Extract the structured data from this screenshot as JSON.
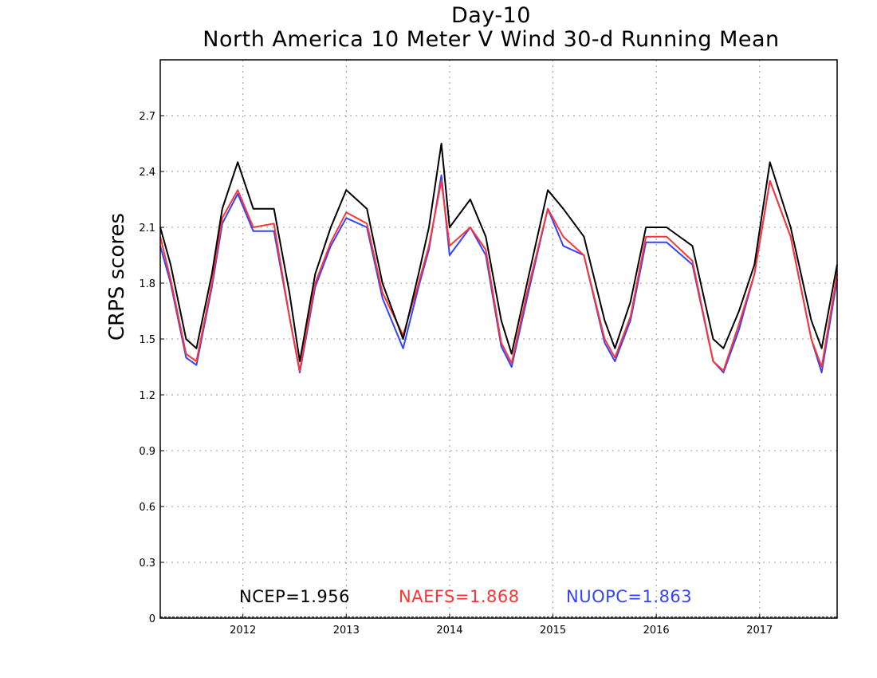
{
  "title_line1": "Day-10",
  "title_line2": "North America 10 Meter V Wind 30-d Running Mean",
  "chart_data": {
    "type": "line",
    "title": "Day-10 North America 10 Meter V Wind 30-d Running Mean",
    "xlabel": "",
    "ylabel": "CRPS scores",
    "xlim": [
      2011.2,
      2017.75
    ],
    "ylim": [
      0,
      3.0
    ],
    "grid": true,
    "x_ticks": [
      {
        "value": 2012.0,
        "label": "2012"
      },
      {
        "value": 2013.0,
        "label": "2013"
      },
      {
        "value": 2014.0,
        "label": "2014"
      },
      {
        "value": 2015.0,
        "label": "2015"
      },
      {
        "value": 2016.0,
        "label": "2016"
      },
      {
        "value": 2017.0,
        "label": "2017"
      }
    ],
    "y_ticks": [
      {
        "value": 0,
        "label": "0"
      },
      {
        "value": 0.3,
        "label": "0.3"
      },
      {
        "value": 0.6,
        "label": "0.6"
      },
      {
        "value": 0.9,
        "label": "0.9"
      },
      {
        "value": 1.2,
        "label": "1.2"
      },
      {
        "value": 1.5,
        "label": "1.5"
      },
      {
        "value": 1.8,
        "label": "1.8"
      },
      {
        "value": 2.1,
        "label": "2.1"
      },
      {
        "value": 2.4,
        "label": "2.4"
      },
      {
        "value": 2.7,
        "label": "2.7"
      }
    ],
    "x": [
      2011.2,
      2011.3,
      2011.45,
      2011.55,
      2011.7,
      2011.8,
      2011.95,
      2012.1,
      2012.3,
      2012.45,
      2012.55,
      2012.7,
      2012.85,
      2013.0,
      2013.2,
      2013.35,
      2013.55,
      2013.7,
      2013.8,
      2013.92,
      2014.0,
      2014.2,
      2014.35,
      2014.5,
      2014.6,
      2014.75,
      2014.95,
      2015.1,
      2015.3,
      2015.5,
      2015.6,
      2015.75,
      2015.9,
      2016.1,
      2016.35,
      2016.55,
      2016.65,
      2016.8,
      2016.95,
      2017.1,
      2017.3,
      2017.5,
      2017.6,
      2017.75
    ],
    "series": [
      {
        "name": "NCEP",
        "label": "NCEP=1.956",
        "color": "#000000",
        "values": [
          2.1,
          1.9,
          1.5,
          1.45,
          1.85,
          2.2,
          2.45,
          2.2,
          2.2,
          1.75,
          1.38,
          1.85,
          2.1,
          2.3,
          2.2,
          1.8,
          1.5,
          1.85,
          2.1,
          2.55,
          2.1,
          2.25,
          2.05,
          1.6,
          1.42,
          1.8,
          2.3,
          2.2,
          2.05,
          1.6,
          1.45,
          1.7,
          2.1,
          2.1,
          2.0,
          1.5,
          1.45,
          1.65,
          1.9,
          2.45,
          2.1,
          1.6,
          1.45,
          1.9
        ]
      },
      {
        "name": "NAEFS",
        "label": "NAEFS=1.868",
        "color": "#ff3333",
        "values": [
          2.05,
          1.82,
          1.42,
          1.38,
          1.8,
          2.15,
          2.3,
          2.1,
          2.12,
          1.62,
          1.33,
          1.8,
          2.02,
          2.18,
          2.12,
          1.75,
          1.52,
          1.8,
          2.0,
          2.35,
          2.0,
          2.1,
          1.98,
          1.48,
          1.37,
          1.75,
          2.2,
          2.05,
          1.95,
          1.5,
          1.4,
          1.62,
          2.05,
          2.05,
          1.92,
          1.38,
          1.33,
          1.58,
          1.85,
          2.35,
          2.05,
          1.5,
          1.35,
          1.85
        ]
      },
      {
        "name": "NUOPC",
        "label": "NUOPC=1.863",
        "color": "#3344ff",
        "values": [
          2.0,
          1.8,
          1.4,
          1.36,
          1.78,
          2.12,
          2.28,
          2.08,
          2.08,
          1.62,
          1.32,
          1.78,
          2.0,
          2.15,
          2.1,
          1.72,
          1.45,
          1.78,
          1.98,
          2.38,
          1.95,
          2.1,
          1.95,
          1.46,
          1.35,
          1.72,
          2.2,
          2.0,
          1.95,
          1.48,
          1.38,
          1.6,
          2.02,
          2.02,
          1.9,
          1.38,
          1.32,
          1.55,
          1.85,
          2.35,
          2.05,
          1.5,
          1.32,
          1.82
        ]
      }
    ]
  }
}
